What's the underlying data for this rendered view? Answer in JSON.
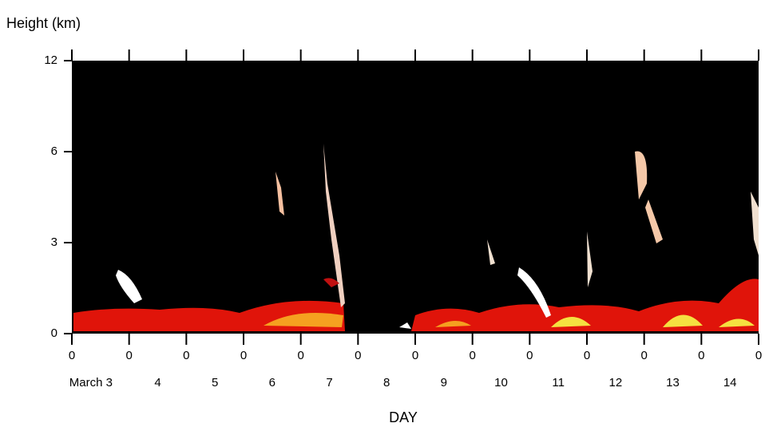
{
  "chart_data": {
    "type": "time-height",
    "y_label": "Height (km)",
    "x_label": "DAY",
    "categories": [
      "March 3",
      "4",
      "5",
      "6",
      "7",
      "8",
      "9",
      "10",
      "11",
      "12",
      "13",
      "14"
    ],
    "xlim": [
      0,
      12
    ],
    "xticks": [
      {
        "value": 0,
        "label": "0"
      },
      {
        "value": 1,
        "label": "0"
      },
      {
        "value": 2,
        "label": "0"
      },
      {
        "value": 3,
        "label": "0"
      },
      {
        "value": 4,
        "label": "0"
      },
      {
        "value": 5,
        "label": "0"
      },
      {
        "value": 6,
        "label": "0"
      },
      {
        "value": 7,
        "label": "0"
      },
      {
        "value": 8,
        "label": "0"
      },
      {
        "value": 9,
        "label": "0"
      },
      {
        "value": 10,
        "label": "0"
      },
      {
        "value": 11,
        "label": "0"
      },
      {
        "value": 12,
        "label": "0"
      }
    ],
    "ylim": [
      0,
      12
    ],
    "yticks": [
      0,
      3,
      6,
      12
    ]
  }
}
